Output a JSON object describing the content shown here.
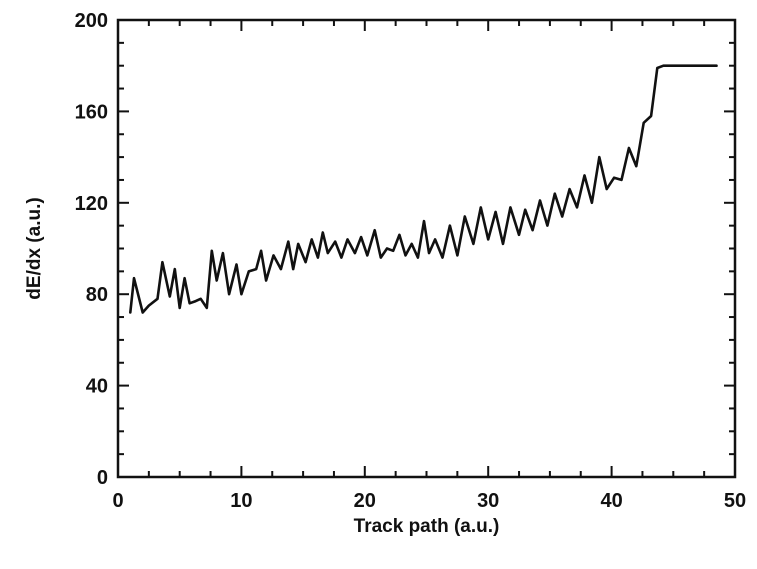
{
  "chart_data": {
    "type": "line",
    "title": "",
    "xlabel": "Track path (a.u.)",
    "ylabel": "dE/dx (a.u.)",
    "xlim": [
      0,
      50
    ],
    "ylim": [
      0,
      200
    ],
    "x_ticks": [
      0,
      10,
      20,
      30,
      40,
      50
    ],
    "y_ticks": [
      0,
      40,
      80,
      120,
      160,
      200
    ],
    "x_tick_labels": [
      "0",
      "10",
      "20",
      "30",
      "40",
      "50"
    ],
    "y_tick_labels": [
      "0",
      "40",
      "80",
      "120",
      "160",
      "200"
    ],
    "grid": false,
    "legend": "none",
    "line_color": "#111111",
    "series": [
      {
        "x": [
          1.0,
          1.3,
          2.0,
          2.5,
          3.2,
          3.6,
          4.2,
          4.6,
          5.0,
          5.4,
          5.8,
          6.3,
          6.7,
          7.2,
          7.6,
          8.0,
          8.5,
          9.0,
          9.6,
          10.0,
          10.6,
          11.2,
          11.6,
          12.0,
          12.6,
          13.2,
          13.8,
          14.2,
          14.6,
          15.2,
          15.7,
          16.2,
          16.6,
          17.0,
          17.6,
          18.1,
          18.6,
          19.2,
          19.7,
          20.2,
          20.8,
          21.3,
          21.8,
          22.3,
          22.8,
          23.3,
          23.8,
          24.3,
          24.8,
          25.2,
          25.7,
          26.3,
          26.9,
          27.5,
          28.1,
          28.8,
          29.4,
          30.0,
          30.6,
          31.2,
          31.8,
          32.5,
          33.0,
          33.6,
          34.2,
          34.8,
          35.4,
          36.0,
          36.6,
          37.2,
          37.8,
          38.4,
          39.0,
          39.6,
          40.2,
          40.8,
          41.4,
          42.0,
          42.6,
          43.2,
          43.7,
          44.2,
          44.7,
          45.2,
          45.8,
          46.3,
          46.8,
          47.3,
          47.8,
          48.1,
          48.5
        ],
        "y": [
          72,
          87,
          72,
          75,
          78,
          94,
          79,
          91,
          74,
          87,
          76,
          77,
          78,
          74,
          99,
          86,
          98,
          80,
          93,
          80,
          90,
          91,
          99,
          86,
          97,
          91,
          103,
          91,
          102,
          94,
          104,
          96,
          107,
          98,
          103,
          96,
          104,
          98,
          105,
          97,
          108,
          96,
          100,
          99,
          106,
          97,
          102,
          96,
          112,
          98,
          104,
          96,
          110,
          97,
          114,
          102,
          118,
          104,
          116,
          102,
          118,
          106,
          117,
          108,
          121,
          110,
          124,
          114,
          126,
          118,
          132,
          120,
          140,
          126,
          131,
          130,
          144,
          136,
          155,
          158,
          179,
          180,
          180,
          180,
          180,
          180,
          180,
          180,
          180,
          180,
          180
        ],
        "y_pre_smooth_note": ""
      }
    ]
  }
}
